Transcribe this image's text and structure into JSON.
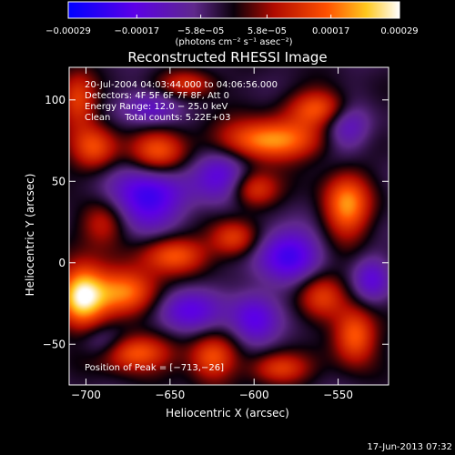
{
  "chart_data": {
    "type": "heatmap",
    "title": "Reconstructed RHESSI Image",
    "xlabel": "Heliocentric X (arcsec)",
    "ylabel": "Heliocentric Y (arcsec)",
    "xlim": [
      -710,
      -520
    ],
    "ylim": [
      -75,
      120
    ],
    "x_ticks": [
      -700,
      -650,
      -600,
      -550
    ],
    "y_ticks": [
      -50,
      0,
      50,
      100
    ],
    "x_tick_labels": [
      "−700",
      "−650",
      "−600",
      "−550"
    ],
    "y_tick_labels": [
      "−50",
      "0",
      "50",
      "100"
    ],
    "colorbar": {
      "range": [
        -0.00029,
        0.00029
      ],
      "ticks": [
        -0.00029,
        -0.00017,
        -5.8e-05,
        5.8e-05,
        0.00017,
        0.00029
      ],
      "tick_labels": [
        "−0.00029",
        "−0.00017",
        "−5.8e−05",
        "5.8e−05",
        "0.00017",
        "0.00029"
      ],
      "unit_label": "(photons cm⁻² s⁻¹ asec⁻²)"
    },
    "annotations": {
      "time_range": "20-Jul-2004 04:03:44.000 to 04:06:56.000",
      "detectors": "Detectors: 4F 5F 6F 7F 8F, Att 0",
      "energy_range": "Energy Range: 12.0 − 25.0 keV",
      "clean_total": "Clean     Total counts: 5.22E+03",
      "peak_position": "Position of Peak = [−713,−26]"
    },
    "peak": [
      -713,
      -26
    ],
    "blobs": [
      {
        "x": -703,
        "y": -20,
        "value": 0.00029,
        "sx": 10,
        "sy": 14
      },
      {
        "x": -676,
        "y": -18,
        "value": 0.00022,
        "sx": 14,
        "sy": 10
      },
      {
        "x": -672,
        "y": -55,
        "value": 0.0002,
        "sx": 16,
        "sy": 8
      },
      {
        "x": -625,
        "y": -58,
        "value": 0.00018,
        "sx": 10,
        "sy": 10
      },
      {
        "x": -585,
        "y": -65,
        "value": 0.00016,
        "sx": 12,
        "sy": 7
      },
      {
        "x": -540,
        "y": -45,
        "value": 0.0002,
        "sx": 9,
        "sy": 12
      },
      {
        "x": -560,
        "y": -20,
        "value": 0.00014,
        "sx": 10,
        "sy": 10
      },
      {
        "x": -648,
        "y": 5,
        "value": 0.00018,
        "sx": 14,
        "sy": 8
      },
      {
        "x": -612,
        "y": 15,
        "value": 0.00016,
        "sx": 10,
        "sy": 8
      },
      {
        "x": -592,
        "y": 75,
        "value": 0.00024,
        "sx": 22,
        "sy": 9
      },
      {
        "x": -560,
        "y": 95,
        "value": 0.00019,
        "sx": 14,
        "sy": 8
      },
      {
        "x": -545,
        "y": 35,
        "value": 0.00022,
        "sx": 10,
        "sy": 14
      },
      {
        "x": -600,
        "y": 45,
        "value": 0.00016,
        "sx": 10,
        "sy": 8
      },
      {
        "x": -657,
        "y": 68,
        "value": 0.00018,
        "sx": 12,
        "sy": 10
      },
      {
        "x": -695,
        "y": 70,
        "value": 0.00017,
        "sx": 10,
        "sy": 10
      },
      {
        "x": -705,
        "y": 100,
        "value": 0.00015,
        "sx": 8,
        "sy": 12
      },
      {
        "x": -640,
        "y": 110,
        "value": 0.00014,
        "sx": 12,
        "sy": 6
      },
      {
        "x": -690,
        "y": 25,
        "value": 0.00014,
        "sx": 10,
        "sy": 10
      },
      {
        "x": -665,
        "y": 40,
        "value": -0.0002,
        "sx": 16,
        "sy": 14
      },
      {
        "x": -620,
        "y": 55,
        "value": -0.00016,
        "sx": 12,
        "sy": 12
      },
      {
        "x": -580,
        "y": 5,
        "value": -0.00018,
        "sx": 14,
        "sy": 12
      },
      {
        "x": -545,
        "y": 85,
        "value": -0.00014,
        "sx": 10,
        "sy": 12
      },
      {
        "x": -640,
        "y": -30,
        "value": -0.00015,
        "sx": 14,
        "sy": 10
      },
      {
        "x": -600,
        "y": -35,
        "value": -0.00015,
        "sx": 10,
        "sy": 12
      },
      {
        "x": -660,
        "y": 95,
        "value": -0.00012,
        "sx": 12,
        "sy": 8
      },
      {
        "x": -530,
        "y": -10,
        "value": -0.00012,
        "sx": 8,
        "sy": 10
      },
      {
        "x": -690,
        "y": -50,
        "value": -0.0001,
        "sx": 10,
        "sy": 8
      }
    ]
  },
  "footer": {
    "timestamp": "17-Jun-2013 07:32"
  }
}
